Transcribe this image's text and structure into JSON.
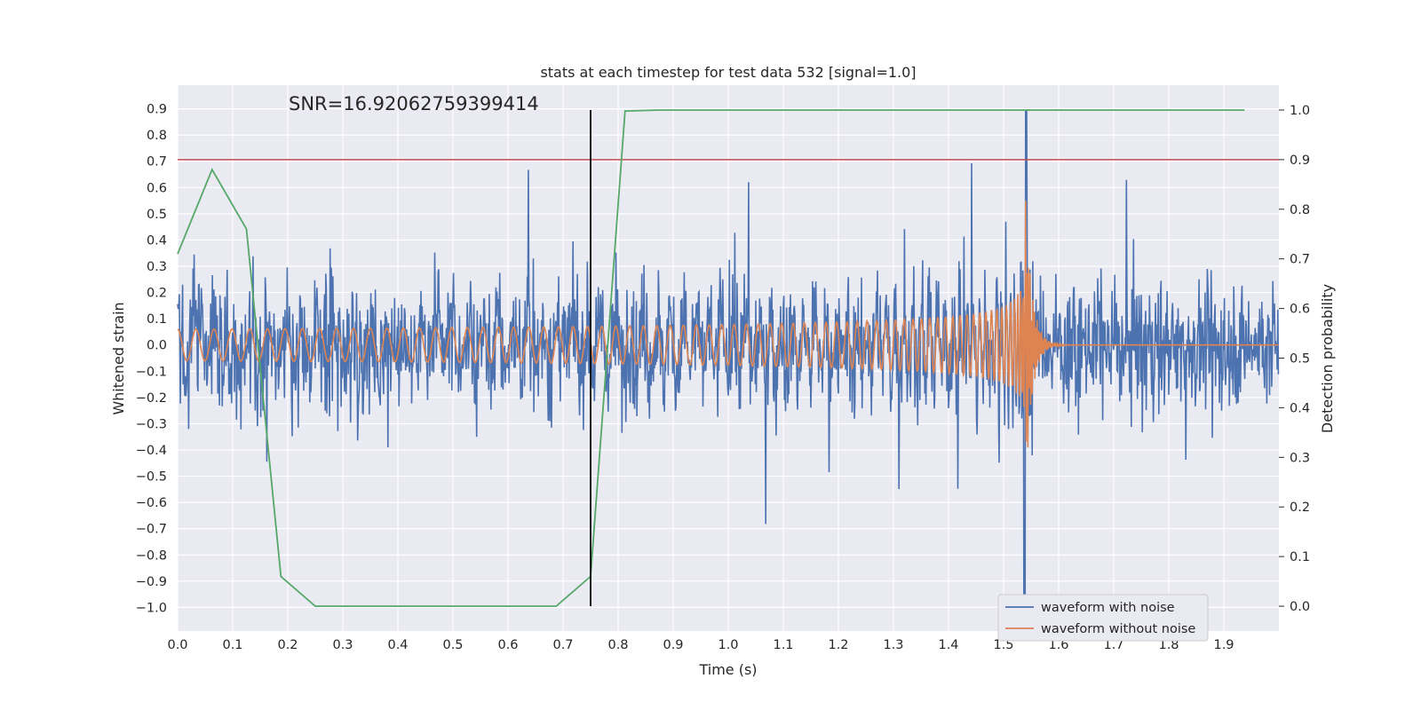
{
  "chart_data": {
    "type": "line",
    "title": "stats at each timestep for test data 532 [signal=1.0]",
    "annotation": "SNR=16.92062759399414",
    "xlabel": "Time (s)",
    "ylabel": "Whitened strain",
    "y2label": "Detection probability",
    "xlim": [
      0.0,
      2.0
    ],
    "ylim": [
      -1.09,
      0.99
    ],
    "y2lim": [
      -0.05,
      1.05
    ],
    "x_ticks": [
      "0.0",
      "0.1",
      "0.2",
      "0.3",
      "0.4",
      "0.5",
      "0.6",
      "0.7",
      "0.8",
      "0.9",
      "1.0",
      "1.1",
      "1.2",
      "1.3",
      "1.4",
      "1.5",
      "1.6",
      "1.7",
      "1.8",
      "1.9"
    ],
    "y_ticks": [
      "0.9",
      "0.8",
      "0.7",
      "0.6",
      "0.5",
      "0.4",
      "0.3",
      "0.2",
      "0.1",
      "0.0",
      "−0.1",
      "−0.2",
      "−0.3",
      "−0.4",
      "−0.5",
      "−0.6",
      "−0.7",
      "−0.8",
      "−0.9",
      "−1.0"
    ],
    "y2_ticks": [
      "1.0",
      "0.9",
      "0.8",
      "0.7",
      "0.6",
      "0.5",
      "0.4",
      "0.3",
      "0.2",
      "0.1",
      "0.0"
    ],
    "threshold": 0.7,
    "detection_time": 0.75,
    "legend_position": "lower right",
    "colors": {
      "noisy": "#4c72b0",
      "clean": "#dd8452",
      "probability": "#55a868",
      "threshold": "#c44e52",
      "marker": "#000000",
      "background": "#eaeaf2",
      "grid": "#ffffff"
    },
    "series": [
      {
        "name": "waveform with noise",
        "axis": "left",
        "note": "dense noisy strain, amplitude roughly ±0.35 with spikes to about ±0.75, merger spike near t=1.54"
      },
      {
        "name": "waveform without noise",
        "axis": "left",
        "note": "chirp signal, amplitude growing from ~0.06 to ~0.7 at t=1.54, then ring-down to zero"
      },
      {
        "name": "detection probability",
        "axis": "right",
        "x": [
          0.0,
          0.0625,
          0.125,
          0.1875,
          0.25,
          0.3125,
          0.375,
          0.4375,
          0.5,
          0.5625,
          0.625,
          0.6875,
          0.75,
          0.8125,
          0.875,
          0.9375,
          1.0,
          1.5,
          1.9375
        ],
        "values": [
          0.71,
          0.88,
          0.76,
          0.06,
          0.0,
          0.0,
          0.0,
          0.0,
          0.0,
          0.0,
          0.0,
          0.0,
          0.06,
          0.998,
          1.0,
          1.0,
          1.0,
          1.0,
          1.0
        ]
      }
    ]
  }
}
